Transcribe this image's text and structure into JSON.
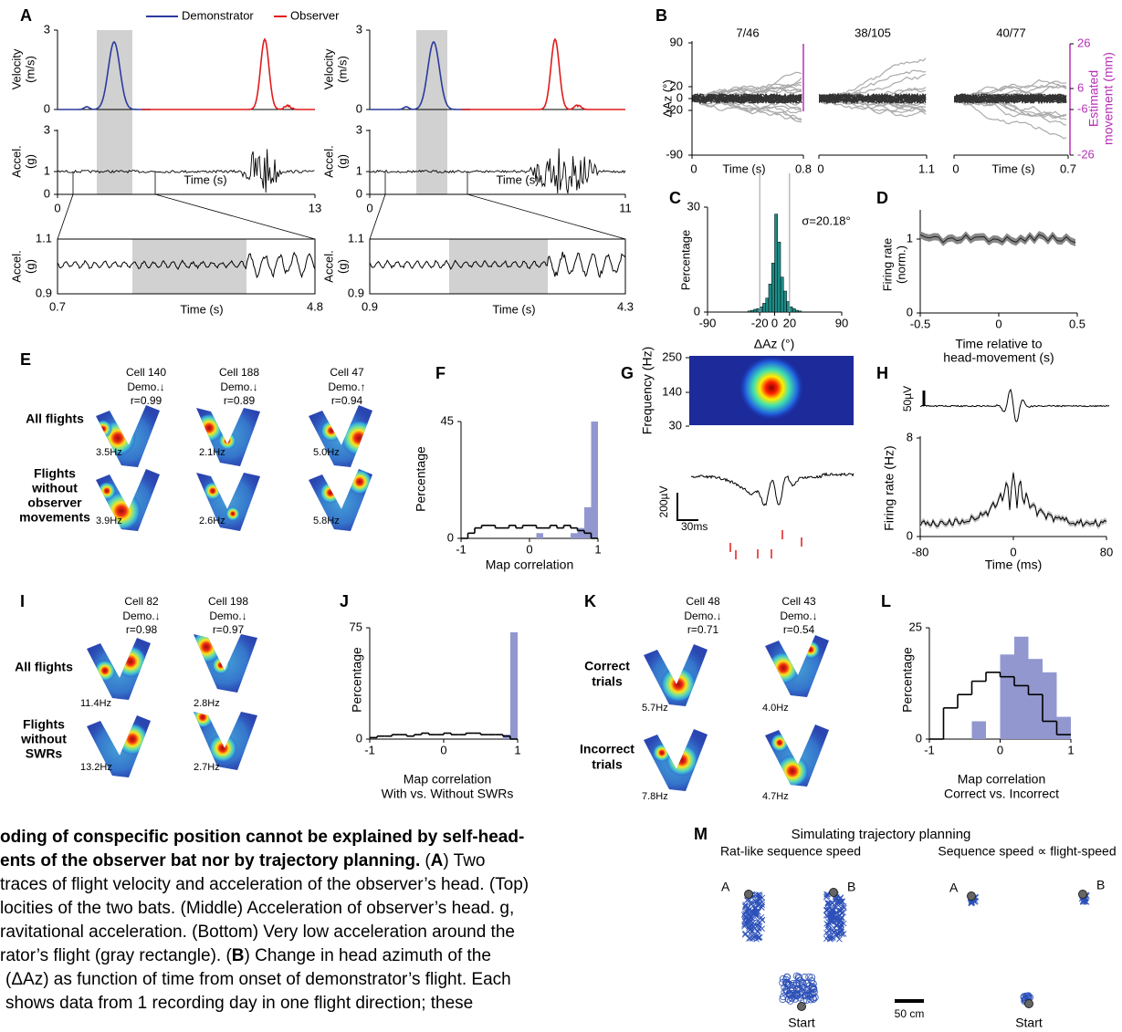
{
  "panel_a": {
    "label": "A",
    "legend": [
      "Demonstrator",
      "Observer"
    ],
    "left": {
      "velocity_label": [
        "Velocity",
        "(m/s)"
      ],
      "velocity_ticks": [
        3,
        0
      ],
      "accel_label": [
        "Accel.",
        "(g)"
      ],
      "accel_ticks": [
        3,
        1,
        0
      ],
      "time_ticks": [
        0,
        13
      ],
      "time_label": "Time (s)",
      "inset_label": [
        "Accel.",
        "(g)"
      ],
      "inset_y_ticks": [
        1.1,
        0.9
      ],
      "inset_x_ticks": [
        0.7,
        4.8
      ],
      "inset_time_label": "Time (s)"
    },
    "right": {
      "velocity_label": [
        "Velocity",
        "(m/s)"
      ],
      "velocity_ticks": [
        3,
        0
      ],
      "accel_label": [
        "Accel.",
        "(g)"
      ],
      "accel_ticks": [
        3,
        1,
        0
      ],
      "time_ticks": [
        0,
        11
      ],
      "time_label": "Time (s)",
      "inset_label": [
        "Accel.",
        "(g)"
      ],
      "inset_y_ticks": [
        1.1,
        0.9
      ],
      "inset_x_ticks": [
        0.9,
        4.3
      ],
      "inset_time_label": "Time (s)"
    }
  },
  "panel_b": {
    "label": "B",
    "counts": [
      "7/46",
      "38/105",
      "40/77"
    ],
    "y_label": "ΔAz (°)",
    "y_ticks": [
      90,
      20,
      0,
      -20,
      -90
    ],
    "y2_label": [
      "Estimated",
      "movement (mm)"
    ],
    "y2_ticks": [
      26,
      6,
      -6,
      -26
    ],
    "x_label": "Time (s)",
    "x_ticks": [
      [
        0,
        0.8
      ],
      [
        0,
        1.1
      ],
      [
        0,
        0.7
      ]
    ]
  },
  "panel_c": {
    "label": "C",
    "y_label": "Percentage",
    "y_ticks": [
      30,
      0
    ],
    "sigma": "σ=20.18°",
    "x_ticks": [
      -90,
      -20,
      0,
      20,
      90
    ],
    "x_label": "ΔAz (°)",
    "bins": [
      -36,
      -32,
      -28,
      -24,
      -20,
      -16,
      -12,
      -8,
      -4,
      0,
      4,
      8,
      12,
      16,
      20,
      24,
      28,
      32,
      36
    ],
    "values": [
      0.3,
      0.5,
      0.8,
      1,
      1.5,
      2.5,
      4,
      8,
      14,
      28,
      20,
      10,
      6,
      3,
      1.5,
      1,
      0.5,
      0.3
    ]
  },
  "panel_d": {
    "label": "D",
    "y_label": [
      "Firing rate",
      "(norm.)"
    ],
    "y_ticks": [
      1,
      0
    ],
    "x_ticks": [
      -0.5,
      0,
      0.5
    ],
    "x_label": [
      "Time relative to",
      "head-movement (s)"
    ]
  },
  "panel_e": {
    "label": "E",
    "cells": [
      {
        "name": "Cell 140",
        "demo": "Demo.↓",
        "r": "r=0.99",
        "rates": [
          "3.5Hz",
          "3.9Hz"
        ]
      },
      {
        "name": "Cell 188",
        "demo": "Demo.↓",
        "r": "r=0.89",
        "rates": [
          "2.1Hz",
          "2.6Hz"
        ]
      },
      {
        "name": "Cell 47",
        "demo": "Demo.↑",
        "r": "r=0.94",
        "rates": [
          "5.0Hz",
          "5.8Hz"
        ]
      }
    ],
    "rows": [
      [
        "All flights"
      ],
      [
        "Flights",
        "without",
        "observer",
        "movements"
      ]
    ]
  },
  "panel_f": {
    "label": "F",
    "y_label": "Percentage",
    "y_ticks": [
      45,
      0
    ],
    "x_ticks": [
      -1,
      0,
      1
    ],
    "x_label": "Map correlation",
    "bins": [
      -1,
      -0.9,
      -0.8,
      -0.7,
      -0.6,
      -0.5,
      -0.4,
      -0.3,
      -0.2,
      -0.1,
      0,
      0.1,
      0.2,
      0.3,
      0.4,
      0.5,
      0.6,
      0.7,
      0.8,
      0.9,
      1
    ],
    "observed": [
      0,
      0,
      0,
      0,
      0,
      0,
      0,
      0,
      0,
      0,
      0,
      2,
      0,
      0,
      0,
      0,
      2,
      4,
      12,
      45
    ],
    "shuffled": [
      0,
      2,
      4,
      5,
      5,
      4,
      4,
      5,
      4,
      5,
      5,
      4,
      4,
      5,
      4,
      5,
      4,
      3,
      2,
      0
    ]
  },
  "panel_g": {
    "label": "G",
    "y_label": "Frequency (Hz)",
    "y_ticks": [
      250,
      140,
      30
    ],
    "scale_v": "200µV",
    "scale_t": "30ms"
  },
  "panel_h": {
    "label": "H",
    "scale_v": "50µV",
    "y_label": "Firing rate (Hz)",
    "y_ticks": [
      8,
      0
    ],
    "x_ticks": [
      -80,
      0,
      80
    ],
    "x_label": "Time (ms)"
  },
  "panel_i": {
    "label": "I",
    "cells": [
      {
        "name": "Cell 82",
        "demo": "Demo.↓",
        "r": "r=0.98",
        "rates": [
          "11.4Hz",
          "13.2Hz"
        ]
      },
      {
        "name": "Cell 198",
        "demo": "Demo.↓",
        "r": "r=0.97",
        "rates": [
          "2.8Hz",
          "2.7Hz"
        ]
      }
    ],
    "rows": [
      [
        "All flights"
      ],
      [
        "Flights",
        "without",
        "SWRs"
      ]
    ]
  },
  "panel_j": {
    "label": "J",
    "y_label": "Percentage",
    "y_ticks": [
      75,
      0
    ],
    "x_ticks": [
      -1,
      0,
      1
    ],
    "x_label": [
      "Map correlation",
      "With vs. Without SWRs"
    ],
    "bins": [
      -1,
      -0.9,
      -0.8,
      -0.7,
      -0.6,
      -0.5,
      -0.4,
      -0.3,
      -0.2,
      -0.1,
      0,
      0.1,
      0.2,
      0.3,
      0.4,
      0.5,
      0.6,
      0.7,
      0.8,
      0.9,
      1
    ],
    "observed": [
      0,
      0,
      0,
      0,
      0,
      0,
      0,
      0,
      0,
      0,
      0,
      0,
      0,
      0,
      0,
      0,
      0,
      0,
      3,
      72
    ],
    "shuffled": [
      1,
      2,
      2,
      3,
      3,
      2,
      3,
      4,
      3,
      3,
      4,
      3,
      3,
      4,
      4,
      3,
      3,
      3,
      2,
      0
    ]
  },
  "panel_k": {
    "label": "K",
    "cells": [
      {
        "name": "Cell 48",
        "demo": "Demo.↓",
        "r": "r=0.71",
        "rates": [
          "5.7Hz",
          "7.8Hz"
        ]
      },
      {
        "name": "Cell 43",
        "demo": "Demo.↓",
        "r": "r=0.54",
        "rates": [
          "4.0Hz",
          "4.7Hz"
        ]
      }
    ],
    "rows": [
      [
        "Correct",
        "trials"
      ],
      [
        "Incorrect",
        "trials"
      ]
    ]
  },
  "panel_l": {
    "label": "L",
    "y_label": "Percentage",
    "y_ticks": [
      25,
      0
    ],
    "x_ticks": [
      -1,
      0,
      1
    ],
    "x_label": [
      "Map correlation",
      "Correct vs. Incorrect"
    ],
    "bins": [
      -1,
      -0.8,
      -0.6,
      -0.4,
      -0.2,
      0,
      0.2,
      0.4,
      0.6,
      0.8,
      1
    ],
    "observed": [
      0,
      0,
      0,
      4,
      0,
      19,
      23,
      18,
      15,
      5
    ],
    "shuffled": [
      0,
      7,
      10,
      13,
      15,
      14,
      12,
      10,
      4,
      1
    ]
  },
  "panel_m": {
    "label": "M",
    "title": "Simulating trajectory planning",
    "subtitles": [
      "Rat-like sequence speed",
      "Sequence speed ∝ flight-speed"
    ],
    "points": [
      "A",
      "B",
      "A",
      "B"
    ],
    "start": [
      "Start",
      "Start"
    ],
    "scale": "50 cm"
  },
  "caption": {
    "lines": [
      [
        "oding of conspecific position cannot be explained by self-head-"
      ],
      [
        "ents of the observer bat nor by trajectory planning.",
        "(",
        "A",
        ") Two"
      ],
      [
        "traces of flight velocity and acceleration of the observer’s head. (Top)"
      ],
      [
        "locities of the two bats. (Middle) Acceleration of observer’s head. g,"
      ],
      [
        "ravitational acceleration. (Bottom) Very low acceleration around the"
      ],
      [
        "rator’s flight (gray rectangle). (",
        "B",
        ") Change in head azimuth of the"
      ],
      [
        "(ΔAz) as function of time from onset of demonstrator’s flight. Each"
      ],
      [
        "shows data from 1 recording day in one flight direction; these"
      ]
    ]
  }
}
